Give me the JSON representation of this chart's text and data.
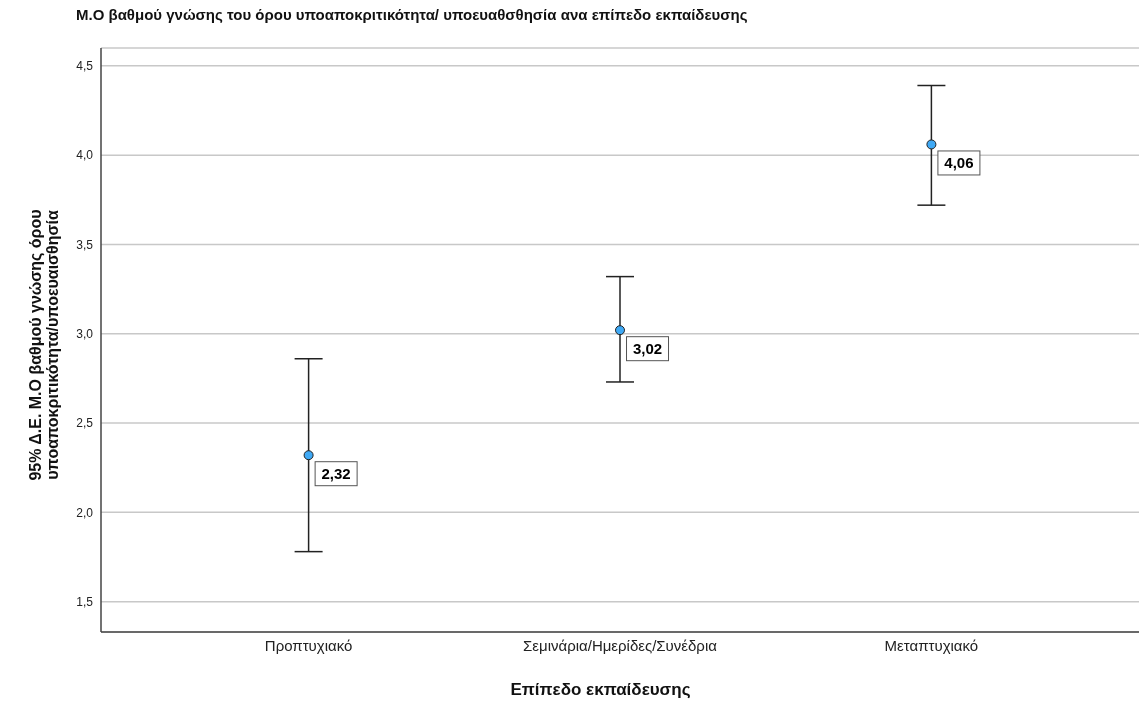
{
  "chart_data": {
    "type": "scatter",
    "title": "Μ.Ο βαθμού γνώσης του όρου υποαποκριτικότητα/ υποευαθσθησία ανα επίπεδο εκπαίδευσης",
    "xlabel": "Επίπεδο εκπαίδευσης",
    "ylabel": "95% Δ.Ε.  Μ.Ο βαθμού γνώσης όρου υποαποκριτικότητα/υποευαισθησία",
    "categories": [
      "Προπτυχιακό",
      "Σεμινάρια/Ημερίδες/Συνέδρια",
      "Μεταπτυχιακό"
    ],
    "values": [
      2.32,
      3.02,
      4.06
    ],
    "errors": [
      [
        1.78,
        2.86
      ],
      [
        2.73,
        3.32
      ],
      [
        3.72,
        4.39
      ]
    ],
    "value_labels": [
      "2,32",
      "3,02",
      "4,06"
    ],
    "color": "#3fa9f5",
    "marker": "circle",
    "grid": "y",
    "ylim": [
      1.33,
      4.6
    ],
    "yticks": [
      {
        "value": 1.5,
        "label": "1,5"
      },
      {
        "value": 2,
        "label": "2,0"
      },
      {
        "value": 2.5,
        "label": "2,5"
      },
      {
        "value": 3,
        "label": "3,0"
      },
      {
        "value": 3.5,
        "label": "3,5"
      },
      {
        "value": 4,
        "label": "4,0"
      },
      {
        "value": 4.5,
        "label": "4,5"
      }
    ]
  }
}
